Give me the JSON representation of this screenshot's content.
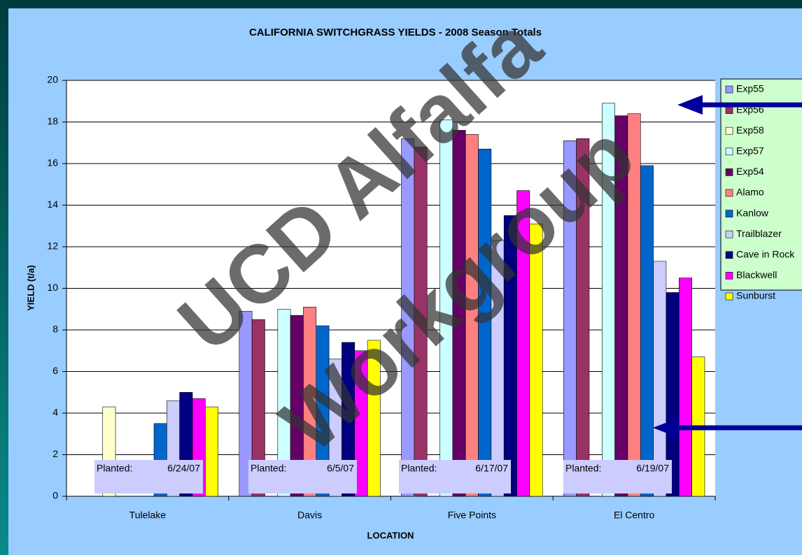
{
  "chart_data": {
    "type": "bar",
    "title": "CALIFORNIA SWITCHGRASS YIELDS - 2008 Season Totals",
    "x_label": "LOCATION",
    "y_label": "YIELD (t/a)",
    "categories": [
      "Tulelake",
      "Davis",
      "Five Points",
      "El Centro"
    ],
    "series": [
      {
        "name": "Exp55",
        "color": "#9999ff",
        "values": [
          null,
          8.9,
          17.2,
          17.1
        ]
      },
      {
        "name": "Exp56",
        "color": "#993366",
        "values": [
          null,
          8.5,
          16.8,
          17.2
        ]
      },
      {
        "name": "Exp58",
        "color": "#ffffcc",
        "values": [
          4.3,
          null,
          null,
          null
        ]
      },
      {
        "name": "Exp57",
        "color": "#ccffff",
        "values": [
          null,
          9.0,
          18.1,
          18.9
        ]
      },
      {
        "name": "Exp54",
        "color": "#660066",
        "values": [
          null,
          8.7,
          17.6,
          18.3
        ]
      },
      {
        "name": "Alamo",
        "color": "#ff8080",
        "values": [
          null,
          9.1,
          17.4,
          18.4
        ]
      },
      {
        "name": "Kanlow",
        "color": "#0066cc",
        "values": [
          3.5,
          8.2,
          16.7,
          15.9
        ]
      },
      {
        "name": "Trailblazer",
        "color": "#ccccff",
        "values": [
          4.6,
          6.6,
          12.3,
          11.3
        ]
      },
      {
        "name": "Cave in Rock",
        "color": "#000080",
        "values": [
          5.0,
          7.4,
          13.5,
          9.8
        ]
      },
      {
        "name": "Blackwell",
        "color": "#ff00ff",
        "values": [
          4.7,
          7.0,
          14.7,
          10.5
        ]
      },
      {
        "name": "Sunburst",
        "color": "#ffff00",
        "values": [
          4.3,
          7.5,
          13.1,
          6.7
        ]
      }
    ],
    "ylim": [
      0,
      20
    ],
    "yticks": [
      0,
      2,
      4,
      6,
      8,
      10,
      12,
      14,
      16,
      18,
      20
    ],
    "grid": true,
    "annotations": [
      {
        "label": "Planted:",
        "date": "6/24/07"
      },
      {
        "label": "Planted:",
        "date": "6/5/07"
      },
      {
        "label": "Planted:",
        "date": "6/17/07"
      },
      {
        "label": "Planted:",
        "date": "6/19/07"
      }
    ],
    "watermark": [
      "UCD Alfalfa",
      "Workgroup"
    ]
  }
}
